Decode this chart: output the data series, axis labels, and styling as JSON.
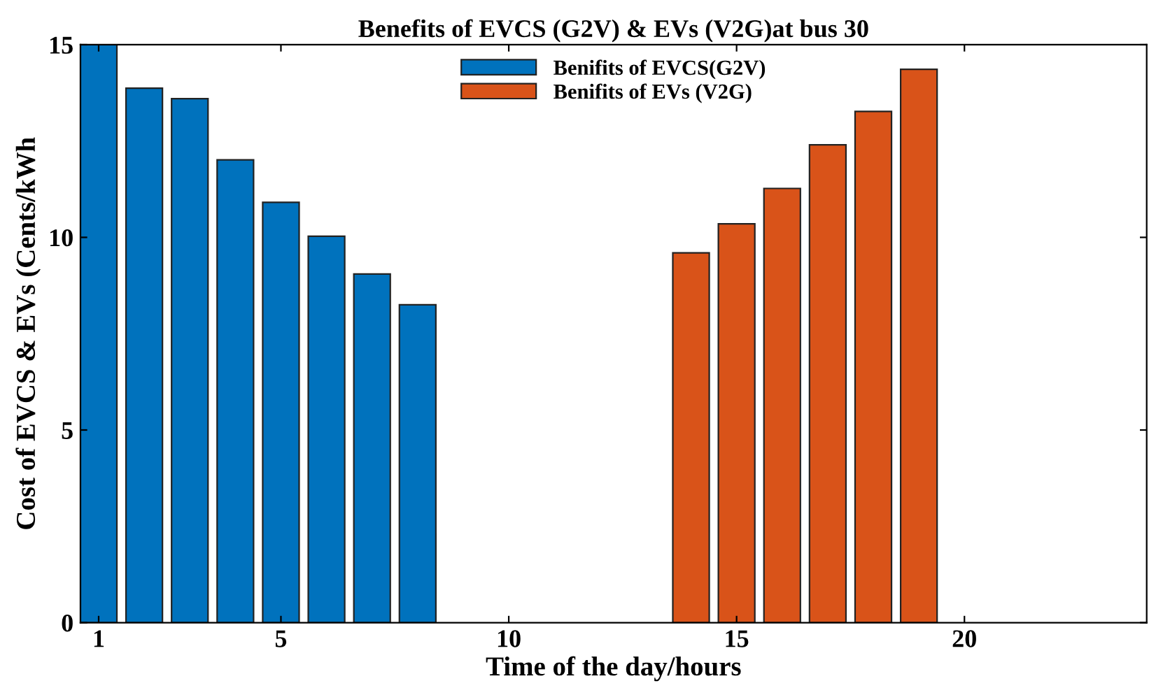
{
  "chart_data": {
    "type": "bar",
    "title": "Benefits of EVCS (G2V) & EVs (V2G)at bus 30",
    "xlabel": "Time of the day/hours",
    "ylabel": "Cost of EVCS & EVs (Cents/kWh",
    "series": [
      {
        "name": "Benifits of EVCS(G2V)",
        "color": "#0072bd",
        "x": [
          1,
          2,
          3,
          4,
          5,
          6,
          7,
          8
        ],
        "values": [
          15.0,
          13.87,
          13.6,
          12.01,
          10.91,
          10.03,
          9.05,
          8.25
        ]
      },
      {
        "name": "Benifits of EVs (V2G)",
        "color": "#d95319",
        "x": [
          14,
          15,
          16,
          17,
          18,
          19
        ],
        "values": [
          9.6,
          10.35,
          11.27,
          12.4,
          13.27,
          14.36
        ]
      }
    ],
    "xlim": [
      0.6,
      24
    ],
    "xticks": [
      1,
      5,
      10,
      15,
      20
    ],
    "ylim": [
      0,
      15
    ],
    "yticks": [
      0,
      5,
      10,
      15
    ],
    "grid": false,
    "legend": "top"
  }
}
